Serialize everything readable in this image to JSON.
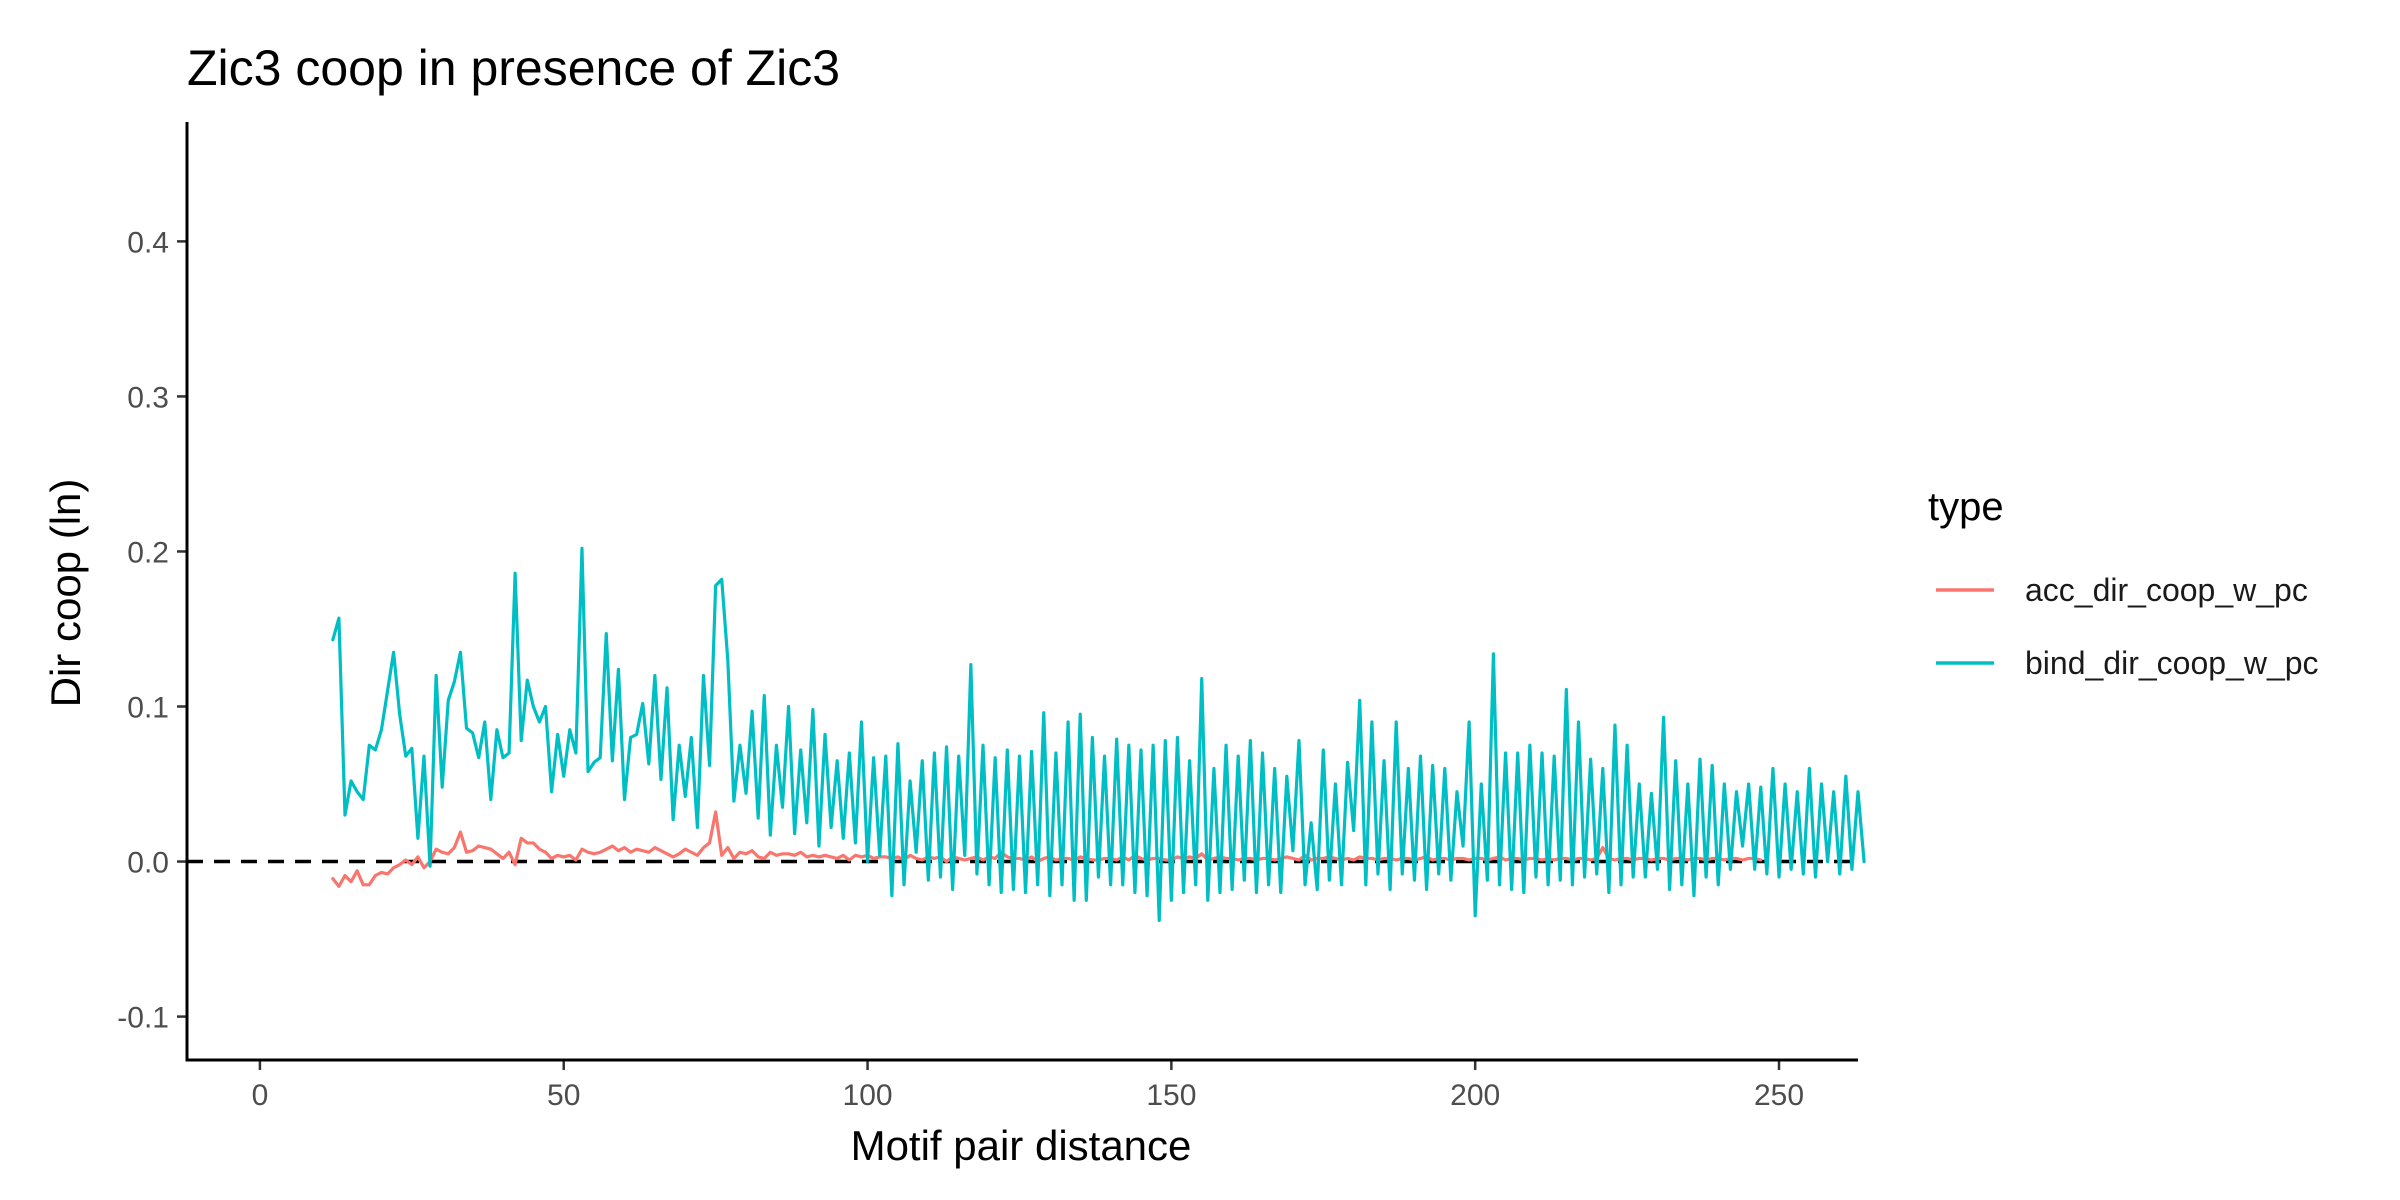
{
  "chart_data": {
    "type": "line",
    "title": "Zic3 coop in presence of Zic3",
    "xlabel": "Motif pair distance",
    "ylabel": "Dir coop (ln)",
    "xlim": [
      -12,
      263
    ],
    "ylim": [
      -0.128,
      0.477
    ],
    "xticks": [
      0,
      50,
      100,
      150,
      200,
      250
    ],
    "xtick_labels": [
      "0",
      "50",
      "100",
      "150",
      "200",
      "250"
    ],
    "yticks": [
      -0.1,
      0.0,
      0.1,
      0.2,
      0.3,
      0.4
    ],
    "ytick_labels": [
      "-0.1",
      "0.0",
      "0.1",
      "0.2",
      "0.3",
      "0.4"
    ],
    "grid": false,
    "legend": {
      "title": "type",
      "position": "right"
    },
    "reference_line": {
      "y": 0,
      "style": "dashed",
      "color": "#000000"
    },
    "series": [
      {
        "name": "acc_dir_coop_w_pc",
        "color": "#F8766D",
        "x_start": 12,
        "values": [
          -0.011,
          -0.016,
          -0.009,
          -0.013,
          -0.006,
          -0.015,
          -0.015,
          -0.009,
          -0.007,
          -0.008,
          -0.004,
          -0.002,
          0.001,
          -0.002,
          0.003,
          -0.004,
          0.0,
          0.008,
          0.006,
          0.005,
          0.009,
          0.019,
          0.006,
          0.007,
          0.01,
          0.009,
          0.008,
          0.005,
          0.002,
          0.006,
          -0.002,
          0.015,
          0.012,
          0.012,
          0.008,
          0.006,
          0.002,
          0.004,
          0.003,
          0.004,
          0.001,
          0.008,
          0.006,
          0.005,
          0.006,
          0.008,
          0.01,
          0.007,
          0.009,
          0.006,
          0.008,
          0.007,
          0.006,
          0.009,
          0.007,
          0.005,
          0.003,
          0.005,
          0.008,
          0.006,
          0.004,
          0.009,
          0.012,
          0.032,
          0.004,
          0.009,
          0.002,
          0.006,
          0.005,
          0.007,
          0.003,
          0.002,
          0.006,
          0.004,
          0.005,
          0.005,
          0.004,
          0.006,
          0.003,
          0.004,
          0.003,
          0.004,
          0.003,
          0.002,
          0.004,
          0.001,
          0.004,
          0.003,
          0.004,
          0.002,
          0.003,
          0.003,
          0.002,
          0.003,
          0.001,
          0.004,
          0.002,
          0.001,
          0.003,
          0.002,
          0.003,
          0.0,
          0.003,
          0.002,
          0.001,
          0.002,
          0.003,
          0.001,
          0.003,
          0.002,
          0.006,
          0.003,
          0.002,
          0.002,
          0.001,
          0.003,
          0.0,
          0.002,
          0.003,
          0.001,
          0.002,
          0.002,
          0.001,
          0.003,
          0.002,
          0.001,
          0.001,
          0.002,
          0.002,
          0.001,
          0.003,
          0.001,
          0.004,
          0.002,
          0.001,
          0.002,
          0.002,
          0.001,
          0.001,
          0.003,
          0.002,
          0.003,
          0.002,
          0.005,
          0.001,
          0.002,
          0.003,
          0.002,
          0.002,
          0.001,
          0.002,
          0.002,
          0.001,
          0.002,
          0.002,
          0.001,
          0.002,
          0.003,
          0.002,
          0.001,
          0.004,
          0.001,
          0.002,
          0.002,
          0.003,
          0.002,
          0.001,
          0.002,
          0.001,
          0.003,
          0.002,
          0.002,
          0.001,
          0.002,
          0.002,
          0.001,
          0.002,
          0.002,
          0.001,
          0.002,
          0.003,
          0.001,
          0.002,
          0.002,
          0.001,
          0.002,
          0.002,
          0.001,
          0.002,
          0.002,
          0.001,
          0.002,
          0.003,
          0.001,
          0.002,
          0.002,
          0.001,
          0.002,
          0.002,
          0.001,
          0.002,
          0.001,
          0.002,
          0.002,
          0.001,
          0.002,
          0.002,
          0.001,
          0.002,
          0.009,
          0.002,
          0.001,
          0.002,
          0.002,
          0.001,
          0.002,
          0.002,
          0.001,
          0.002,
          0.002,
          0.001,
          0.002,
          0.002,
          0.001,
          0.002,
          0.002,
          0.001,
          0.002,
          0.002,
          0.001,
          0.002,
          0.002,
          0.001,
          0.002,
          0.002,
          0.001
        ]
      },
      {
        "name": "bind_dir_coop_w_pc",
        "color": "#00BFC4",
        "x_start": 12,
        "values": [
          0.143,
          0.157,
          0.03,
          0.052,
          0.045,
          0.04,
          0.075,
          0.072,
          0.085,
          0.11,
          0.135,
          0.095,
          0.068,
          0.073,
          0.015,
          0.068,
          -0.003,
          0.12,
          0.048,
          0.104,
          0.116,
          0.135,
          0.086,
          0.083,
          0.067,
          0.09,
          0.04,
          0.085,
          0.067,
          0.07,
          0.186,
          0.078,
          0.117,
          0.1,
          0.09,
          0.1,
          0.045,
          0.082,
          0.055,
          0.085,
          0.07,
          0.202,
          0.058,
          0.064,
          0.067,
          0.147,
          0.065,
          0.124,
          0.04,
          0.08,
          0.082,
          0.102,
          0.063,
          0.12,
          0.053,
          0.112,
          0.027,
          0.075,
          0.042,
          0.08,
          0.022,
          0.12,
          0.062,
          0.178,
          0.182,
          0.13,
          0.039,
          0.075,
          0.044,
          0.097,
          0.028,
          0.107,
          0.017,
          0.075,
          0.035,
          0.1,
          0.018,
          0.072,
          0.025,
          0.098,
          0.01,
          0.082,
          0.022,
          0.065,
          0.015,
          0.07,
          0.012,
          0.09,
          0.0,
          0.067,
          0.004,
          0.068,
          -0.022,
          0.076,
          -0.015,
          0.052,
          0.006,
          0.065,
          -0.012,
          0.07,
          -0.01,
          0.074,
          -0.018,
          0.068,
          0.004,
          0.127,
          -0.008,
          0.075,
          -0.015,
          0.067,
          -0.02,
          0.072,
          -0.018,
          0.068,
          -0.02,
          0.071,
          -0.015,
          0.096,
          -0.022,
          0.07,
          -0.015,
          0.09,
          -0.025,
          0.095,
          -0.025,
          0.08,
          -0.01,
          0.068,
          -0.015,
          0.079,
          -0.015,
          0.075,
          -0.02,
          0.072,
          -0.022,
          0.075,
          -0.038,
          0.078,
          -0.025,
          0.08,
          -0.02,
          0.065,
          -0.015,
          0.118,
          -0.025,
          0.06,
          -0.02,
          0.075,
          -0.018,
          0.068,
          -0.012,
          0.078,
          -0.02,
          0.07,
          -0.015,
          0.06,
          -0.02,
          0.055,
          0.007,
          0.078,
          -0.015,
          0.025,
          -0.018,
          0.072,
          -0.012,
          0.05,
          -0.015,
          0.064,
          0.02,
          0.104,
          -0.015,
          0.09,
          -0.008,
          0.065,
          -0.018,
          0.09,
          -0.008,
          0.06,
          -0.012,
          0.068,
          -0.018,
          0.062,
          -0.008,
          0.06,
          -0.012,
          0.045,
          0.01,
          0.09,
          -0.035,
          0.05,
          -0.012,
          0.134,
          -0.015,
          0.07,
          -0.018,
          0.07,
          -0.02,
          0.075,
          -0.01,
          0.07,
          -0.015,
          0.068,
          -0.012,
          0.111,
          -0.015,
          0.09,
          -0.01,
          0.066,
          -0.008,
          0.06,
          -0.02,
          0.088,
          -0.015,
          0.075,
          -0.01,
          0.05,
          -0.01,
          0.044,
          -0.005,
          0.093,
          -0.018,
          0.065,
          -0.015,
          0.05,
          -0.022,
          0.066,
          -0.01,
          0.062,
          -0.015,
          0.05,
          -0.005,
          0.045,
          0.01,
          0.05,
          -0.005,
          0.048,
          -0.008,
          0.06,
          -0.01,
          0.05,
          -0.005,
          0.045,
          -0.008,
          0.06,
          -0.01,
          0.05,
          0.0,
          0.045,
          -0.008,
          0.055,
          -0.005,
          0.045,
          0.0
        ]
      }
    ]
  }
}
